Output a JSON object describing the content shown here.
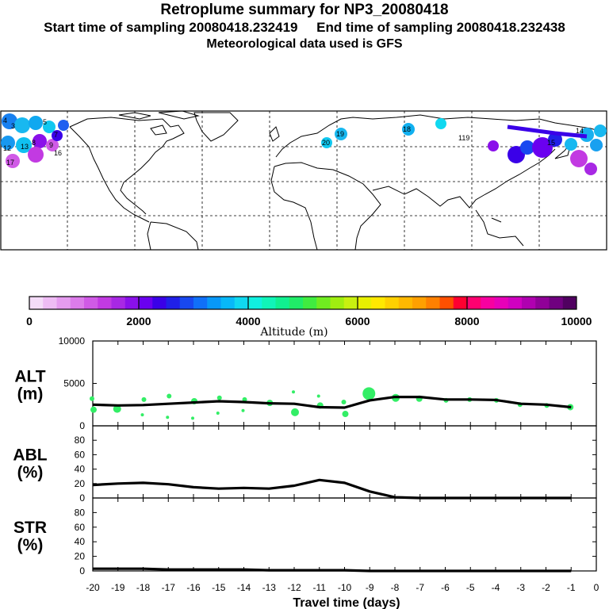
{
  "header": {
    "title": "Retroplume summary for NP3_20080418",
    "start_label": "Start time of sampling 20080418.232419",
    "end_label": "End time of sampling 20080418.232438",
    "met_label": "Meteorological data used is GFS"
  },
  "colorbar": {
    "axis_label": "Altitude (m)",
    "tick_labels": [
      "0",
      "2000",
      "4000",
      "6000",
      "8000",
      "10000"
    ],
    "colors": [
      "#f4dcf8",
      "#eebcf4",
      "#e59cef",
      "#dc7cea",
      "#d05ae6",
      "#c23ae2",
      "#a828e4",
      "#8a10ea",
      "#6a00f0",
      "#3a00e8",
      "#2020e8",
      "#1848f0",
      "#1070f8",
      "#0898f8",
      "#08b8f8",
      "#10d8f0",
      "#10f0e0",
      "#10f4b8",
      "#10f090",
      "#20ec68",
      "#40ec40",
      "#70ec20",
      "#a0ee10",
      "#c8f010",
      "#e8f000",
      "#ffe800",
      "#ffd000",
      "#ffb800",
      "#ffa000",
      "#ff8000",
      "#ff5000",
      "#ff0030",
      "#ff0070",
      "#f800a0",
      "#e800b8",
      "#d000c0",
      "#b000b0",
      "#900098",
      "#700080",
      "#500060"
    ]
  },
  "map": {
    "labels": [
      "4",
      "3",
      "5",
      "7",
      "8",
      "9",
      "12",
      "13",
      "14",
      "15",
      "16",
      "17",
      "18",
      "19",
      "20",
      "119"
    ]
  },
  "chart_data": [
    {
      "type": "line",
      "panel": "ALT",
      "ylabel": "ALT\n(m)",
      "ylabel_lines": [
        "ALT",
        "(m)"
      ],
      "ylim": [
        0,
        10000
      ],
      "yticks": [
        "10000",
        "5000",
        "0"
      ],
      "x": [
        -20,
        -19,
        -18,
        -17,
        -16,
        -15,
        -14,
        -13,
        -12,
        -11,
        -10,
        -9,
        -8,
        -7,
        -6,
        -5,
        -4,
        -3,
        -2,
        -1
      ],
      "series": [
        {
          "name": "mean altitude",
          "values": [
            2500,
            2400,
            2450,
            2600,
            2750,
            2900,
            2800,
            2650,
            2600,
            2200,
            2150,
            3000,
            3400,
            3400,
            3100,
            3100,
            3050,
            2600,
            2500,
            2200
          ]
        }
      ],
      "clusters": {
        "color": "#33ee66",
        "x": [
          -20,
          -20,
          -19,
          -18,
          -18,
          -17,
          -17,
          -16,
          -16,
          -15,
          -15,
          -14,
          -14,
          -13,
          -12,
          -12,
          -11,
          -11,
          -10,
          -10,
          -9,
          -8,
          -7,
          -6,
          -5,
          -4,
          -3,
          -2,
          -1
        ],
        "y": [
          3200,
          1900,
          2000,
          3100,
          1300,
          3500,
          1000,
          2900,
          900,
          3300,
          1500,
          3100,
          1800,
          2700,
          4000,
          1600,
          3500,
          2400,
          2800,
          1400,
          3800,
          3300,
          3200,
          3000,
          3100,
          3000,
          2500,
          2400,
          2200
        ],
        "size": [
          3,
          4,
          5,
          3,
          2,
          3,
          2,
          4,
          2,
          3,
          2,
          3,
          2,
          4,
          2,
          5,
          2,
          4,
          3,
          4,
          8,
          5,
          4,
          3,
          3,
          3,
          3,
          3,
          4
        ]
      }
    },
    {
      "type": "line",
      "panel": "ABL",
      "ylabel": "ABL\n(%)",
      "ylabel_lines": [
        "ABL",
        "(%)"
      ],
      "ylim": [
        0,
        100
      ],
      "yticks": [
        "80",
        "60",
        "40",
        "20",
        "0"
      ],
      "x": [
        -20,
        -19,
        -18,
        -17,
        -16,
        -15,
        -14,
        -13,
        -12,
        -11,
        -10,
        -9,
        -8,
        -7,
        -6,
        -5,
        -4,
        -3,
        -2,
        -1
      ],
      "series": [
        {
          "name": "boundary layer fraction",
          "values": [
            18,
            20,
            21,
            19,
            15,
            13,
            14,
            13,
            17,
            25,
            21,
            9,
            1,
            0,
            0,
            0,
            0,
            0,
            0,
            0
          ]
        }
      ]
    },
    {
      "type": "line",
      "panel": "STR",
      "ylabel": "STR\n(%)",
      "ylabel_lines": [
        "STR",
        "(%)"
      ],
      "ylim": [
        0,
        100
      ],
      "yticks": [
        "80",
        "60",
        "40",
        "20",
        "0"
      ],
      "x": [
        -20,
        -19,
        -18,
        -17,
        -16,
        -15,
        -14,
        -13,
        -12,
        -11,
        -10,
        -9,
        -8,
        -7,
        -6,
        -5,
        -4,
        -3,
        -2,
        -1
      ],
      "series": [
        {
          "name": "stratospheric fraction",
          "values": [
            3,
            3,
            3,
            2,
            2,
            2,
            2,
            1,
            1,
            1,
            1,
            0,
            0,
            0,
            0,
            0,
            0,
            0,
            0,
            0
          ]
        }
      ]
    }
  ],
  "xaxis": {
    "title": "Travel time (days)",
    "tick_labels": [
      "-20",
      "-19",
      "-18",
      "-17",
      "-16",
      "-15",
      "-14",
      "-13",
      "-12",
      "-11",
      "-10",
      "-9",
      "-8",
      "-7",
      "-6",
      "-5",
      "-4",
      "-3",
      "-2",
      "-1",
      "0"
    ]
  }
}
